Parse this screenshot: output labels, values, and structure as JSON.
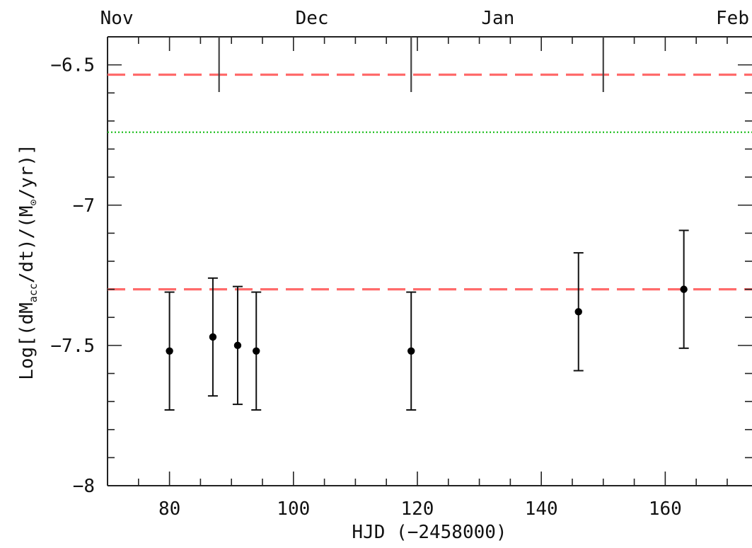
{
  "chart_data": {
    "type": "scatter",
    "xlabel": "HJD (−2458000)",
    "ylabel_parts": {
      "pre": "Log[(dM",
      "sub": "acc",
      "mid": "/dt)/(M",
      "sym": "⊙",
      "post": "/yr)]"
    },
    "xlim": [
      70,
      174
    ],
    "ylim": [
      -8.0,
      -6.4
    ],
    "x_ticks": [
      80,
      100,
      120,
      140,
      160
    ],
    "x_tick_labels": [
      "80",
      "100",
      "120",
      "140",
      "160"
    ],
    "x_minor_step": 5,
    "y_ticks": [
      -8.0,
      -7.5,
      -7.0,
      -6.5
    ],
    "y_tick_labels": [
      "−8",
      "−7.5",
      "−7",
      "−6.5"
    ],
    "y_minor_step": 0.1,
    "months": [
      {
        "label": "Nov",
        "x": 71.5
      },
      {
        "label": "Dec",
        "x": 103.0
      },
      {
        "label": "Jan",
        "x": 133.0
      },
      {
        "label": "Feb",
        "x": 170.5
      }
    ],
    "month_boundaries": [
      88,
      119,
      150
    ],
    "series": [
      {
        "points": [
          {
            "x": 80,
            "y": -7.52,
            "err": 0.21
          },
          {
            "x": 87,
            "y": -7.47,
            "err": 0.21
          },
          {
            "x": 91,
            "y": -7.5,
            "err": 0.21
          },
          {
            "x": 94,
            "y": -7.52,
            "err": 0.21
          },
          {
            "x": 119,
            "y": -7.52,
            "err": 0.21
          },
          {
            "x": 146,
            "y": -7.38,
            "err": 0.21
          },
          {
            "x": 163,
            "y": -7.3,
            "err": 0.21
          }
        ],
        "color": "#000000"
      }
    ],
    "reference_lines": [
      {
        "y": -6.535,
        "style": "dashed",
        "color": "#ff6b6b"
      },
      {
        "y": -6.74,
        "style": "dotted",
        "color": "#22c022"
      },
      {
        "y": -7.3,
        "style": "dashed",
        "color": "#ff6b6b"
      }
    ],
    "grid": false
  }
}
